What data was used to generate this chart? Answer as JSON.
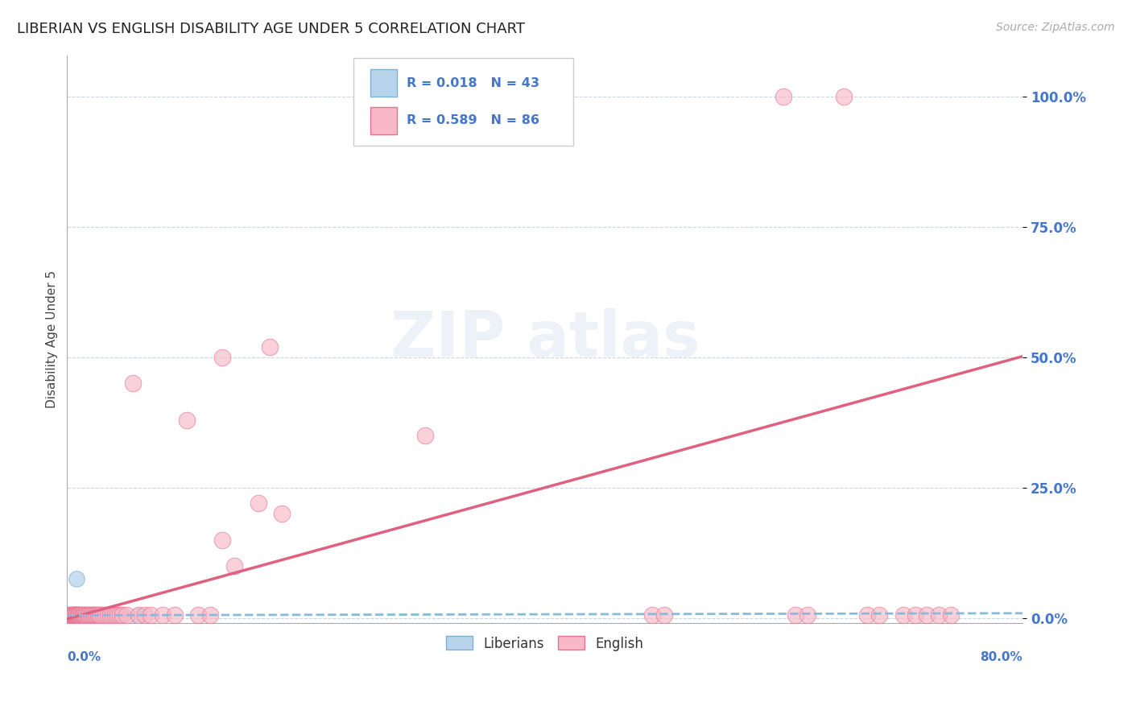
{
  "title": "LIBERIAN VS ENGLISH DISABILITY AGE UNDER 5 CORRELATION CHART",
  "source": "Source: ZipAtlas.com",
  "ylabel": "Disability Age Under 5",
  "ytick_labels": [
    "0.0%",
    "25.0%",
    "50.0%",
    "75.0%",
    "100.0%"
  ],
  "ytick_values": [
    0.0,
    0.25,
    0.5,
    0.75,
    1.0
  ],
  "xlim": [
    0.0,
    0.8
  ],
  "ylim": [
    -0.01,
    1.08
  ],
  "liberian_R": 0.018,
  "liberian_N": 43,
  "english_R": 0.589,
  "english_N": 86,
  "liberian_color": "#b8d4ec",
  "english_color": "#f8b8c8",
  "liberian_edge_color": "#7bafd4",
  "english_edge_color": "#e87090",
  "liberian_line_color": "#88bbd8",
  "english_line_color": "#e06080",
  "text_color": "#4477cc",
  "liberian_x": [
    0.001,
    0.002,
    0.003,
    0.003,
    0.004,
    0.004,
    0.005,
    0.005,
    0.006,
    0.006,
    0.007,
    0.007,
    0.007,
    0.008,
    0.008,
    0.009,
    0.009,
    0.01,
    0.01,
    0.011,
    0.011,
    0.012,
    0.012,
    0.013,
    0.013,
    0.014,
    0.015,
    0.016,
    0.017,
    0.018,
    0.019,
    0.02,
    0.021,
    0.022,
    0.024,
    0.026,
    0.028,
    0.03,
    0.035,
    0.04,
    0.045,
    0.06,
    0.008
  ],
  "liberian_y": [
    0.005,
    0.004,
    0.005,
    0.006,
    0.004,
    0.005,
    0.004,
    0.006,
    0.004,
    0.005,
    0.004,
    0.005,
    0.006,
    0.004,
    0.005,
    0.004,
    0.006,
    0.004,
    0.005,
    0.004,
    0.006,
    0.004,
    0.005,
    0.004,
    0.006,
    0.004,
    0.005,
    0.004,
    0.005,
    0.004,
    0.006,
    0.004,
    0.005,
    0.004,
    0.005,
    0.004,
    0.006,
    0.004,
    0.005,
    0.004,
    0.005,
    0.004,
    0.075
  ],
  "english_x": [
    0.001,
    0.002,
    0.003,
    0.003,
    0.004,
    0.004,
    0.005,
    0.005,
    0.005,
    0.006,
    0.006,
    0.006,
    0.007,
    0.007,
    0.007,
    0.008,
    0.008,
    0.008,
    0.009,
    0.009,
    0.009,
    0.01,
    0.01,
    0.01,
    0.011,
    0.011,
    0.012,
    0.012,
    0.013,
    0.013,
    0.014,
    0.014,
    0.015,
    0.015,
    0.016,
    0.017,
    0.018,
    0.019,
    0.02,
    0.021,
    0.022,
    0.023,
    0.024,
    0.025,
    0.026,
    0.027,
    0.028,
    0.03,
    0.032,
    0.034,
    0.036,
    0.038,
    0.04,
    0.042,
    0.044,
    0.046,
    0.05,
    0.055,
    0.06,
    0.065,
    0.07,
    0.08,
    0.09,
    0.1,
    0.11,
    0.12,
    0.13,
    0.14,
    0.16,
    0.18,
    0.13,
    0.17,
    0.3,
    0.49,
    0.5,
    0.6,
    0.61,
    0.62,
    0.65,
    0.67,
    0.68,
    0.7,
    0.71,
    0.72,
    0.73,
    0.74
  ],
  "english_y": [
    0.004,
    0.005,
    0.004,
    0.006,
    0.004,
    0.005,
    0.004,
    0.005,
    0.006,
    0.004,
    0.005,
    0.006,
    0.004,
    0.005,
    0.006,
    0.004,
    0.005,
    0.006,
    0.004,
    0.005,
    0.006,
    0.004,
    0.005,
    0.006,
    0.004,
    0.006,
    0.004,
    0.005,
    0.004,
    0.006,
    0.004,
    0.005,
    0.004,
    0.006,
    0.005,
    0.005,
    0.006,
    0.005,
    0.005,
    0.006,
    0.005,
    0.006,
    0.005,
    0.006,
    0.005,
    0.005,
    0.006,
    0.005,
    0.006,
    0.005,
    0.006,
    0.005,
    0.006,
    0.005,
    0.005,
    0.006,
    0.005,
    0.45,
    0.005,
    0.005,
    0.005,
    0.005,
    0.005,
    0.38,
    0.005,
    0.005,
    0.15,
    0.1,
    0.22,
    0.2,
    0.5,
    0.52,
    0.35,
    0.005,
    0.005,
    1.0,
    0.005,
    0.005,
    1.0,
    0.005,
    0.005,
    0.005,
    0.005,
    0.005,
    0.005,
    0.005
  ]
}
